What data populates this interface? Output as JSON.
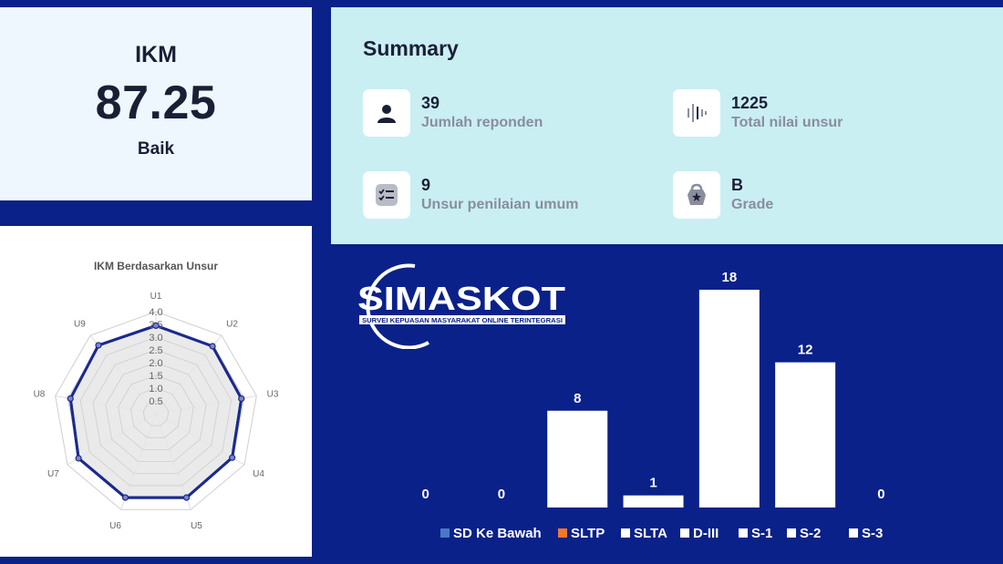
{
  "ikm": {
    "title": "IKM",
    "value": "87.25",
    "label": "Baik"
  },
  "summary": {
    "title": "Summary",
    "stats": [
      {
        "value": "39",
        "label": "Jumlah reponden",
        "icon": "user-icon"
      },
      {
        "value": "1225",
        "label": "Total nilai unsur",
        "icon": "bars-icon"
      },
      {
        "value": "9",
        "label": "Unsur penilaian umum",
        "icon": "checklist-icon"
      },
      {
        "value": "B",
        "label": "Grade",
        "icon": "badge-icon"
      }
    ]
  },
  "logo": {
    "text": "SIMASKOT",
    "tagline": "SURVEI KEPUASAN MASYARAKAT ONLINE TERINTEGRASI"
  },
  "chart_data": [
    {
      "type": "radar",
      "title": "IKM Berdasarkan Unsur",
      "categories": [
        "U1",
        "U2",
        "U3",
        "U4",
        "U5",
        "U6",
        "U7",
        "U8",
        "U9"
      ],
      "values": [
        3.45,
        3.45,
        3.4,
        3.45,
        3.5,
        3.5,
        3.5,
        3.4,
        3.5
      ],
      "ticks": [
        "0.5",
        "1.0",
        "1.5",
        "2.0",
        "2.5",
        "3.0",
        "3.5",
        "4.0"
      ],
      "rlim": [
        0,
        4.0
      ],
      "colors": {
        "line": "#1b2a8f",
        "fill": "#e6e6e6",
        "grid": "#dddddd"
      }
    },
    {
      "type": "bar",
      "categories": [
        "SD Ke Bawah",
        "SLTP",
        "SLTA",
        "D-III",
        "S-1",
        "S-2",
        "S-3"
      ],
      "values": [
        0,
        0,
        8,
        1,
        18,
        12,
        0
      ],
      "ylim": [
        0,
        18
      ],
      "legend_colors": [
        "#4a78c8",
        "#f07a2a",
        "#ffffff",
        "#ffffff",
        "#ffffff",
        "#ffffff",
        "#ffffff"
      ],
      "legend": "bottom"
    }
  ]
}
